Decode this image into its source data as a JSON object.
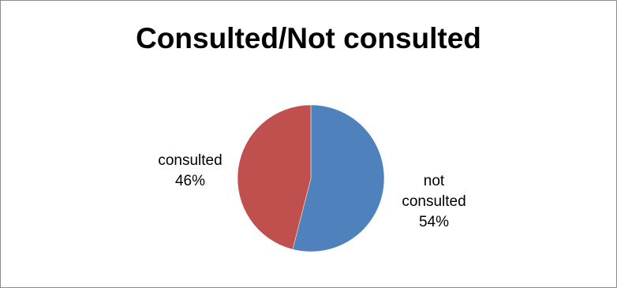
{
  "chart_data": {
    "type": "pie",
    "title": "Consulted/Not consulted",
    "slices": [
      {
        "name": "not consulted",
        "label_lines": [
          "not",
          "consulted"
        ],
        "percent_label": "54%",
        "value": 54,
        "color": "#4f81bd"
      },
      {
        "name": "consulted",
        "label_lines": [
          "consulted"
        ],
        "percent_label": "46%",
        "value": 46,
        "color": "#c0504d"
      }
    ],
    "start_angle_deg": 0,
    "direction": "clockwise",
    "legend": "none"
  }
}
